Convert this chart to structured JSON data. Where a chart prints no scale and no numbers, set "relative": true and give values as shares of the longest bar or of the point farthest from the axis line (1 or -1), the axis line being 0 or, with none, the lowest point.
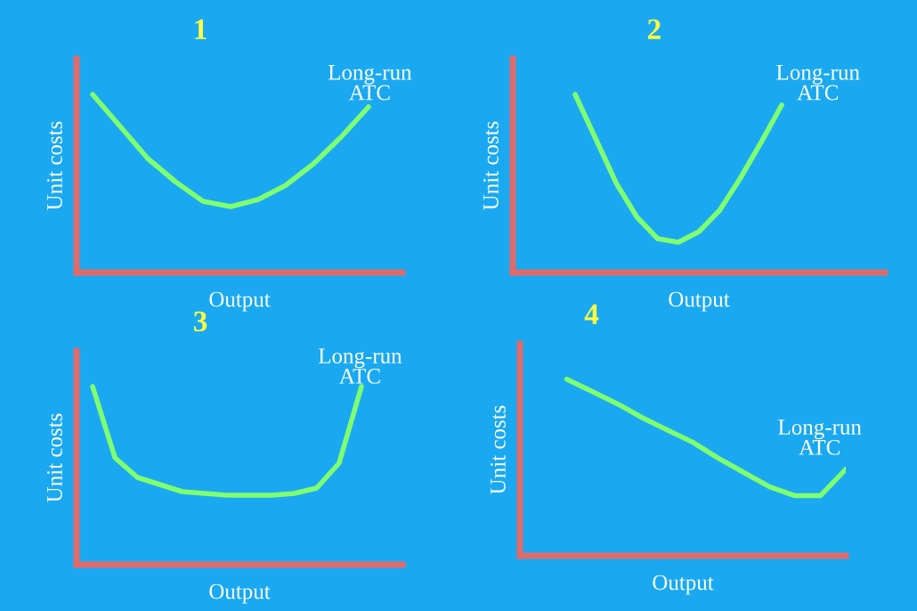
{
  "chart_data": [
    {
      "type": "line",
      "title": "1",
      "xlabel": "Output",
      "ylabel": "Unit costs",
      "relative": true,
      "annotations": [
        "Long-run\nATC"
      ],
      "categories": [
        null,
        null,
        null,
        null,
        null,
        null,
        null,
        null,
        null,
        null,
        null
      ],
      "series": [
        {
          "color": "#80ff70",
          "values": [
            1,
            0.82,
            0.64,
            0.51,
            0.4,
            0.37,
            0.41,
            0.49,
            0.61,
            0.76,
            0.93
          ]
        }
      ]
    },
    {
      "type": "line",
      "title": "2",
      "xlabel": "Output",
      "ylabel": "Unit costs",
      "relative": true,
      "annotations": [
        "Long-run\nATC"
      ],
      "categories": [
        null,
        null,
        null,
        null,
        null,
        null,
        null,
        null,
        null,
        null,
        null
      ],
      "series": [
        {
          "color": "#80ff70",
          "values": [
            1,
            0.75,
            0.5,
            0.31,
            0.19,
            0.17,
            0.23,
            0.35,
            0.53,
            0.73,
            0.94
          ]
        }
      ]
    },
    {
      "type": "line",
      "title": "3",
      "xlabel": "Output",
      "ylabel": "Unit costs",
      "relative": true,
      "annotations": [
        "Long-run\nATC"
      ],
      "categories": [
        null,
        null,
        null,
        null,
        null,
        null,
        null,
        null,
        null,
        null,
        null,
        null,
        null
      ],
      "series": [
        {
          "color": "#80ff70",
          "values": [
            1,
            0.6,
            0.49,
            0.45,
            0.41,
            0.4,
            0.39,
            0.39,
            0.39,
            0.4,
            0.43,
            0.57,
            1
          ]
        }
      ]
    },
    {
      "type": "line",
      "title": "4",
      "xlabel": "Output",
      "ylabel": "Unit costs",
      "relative": true,
      "annotations": [
        "Long-run\nATC"
      ],
      "categories": [
        null,
        null,
        null,
        null,
        null,
        null,
        null,
        null,
        null,
        null,
        null,
        null
      ],
      "series": [
        {
          "color": "#80ff70",
          "values": [
            1,
            0.93,
            0.86,
            0.78,
            0.71,
            0.64,
            0.55,
            0.47,
            0.39,
            0.34,
            0.34,
            0.49
          ]
        }
      ]
    }
  ]
}
